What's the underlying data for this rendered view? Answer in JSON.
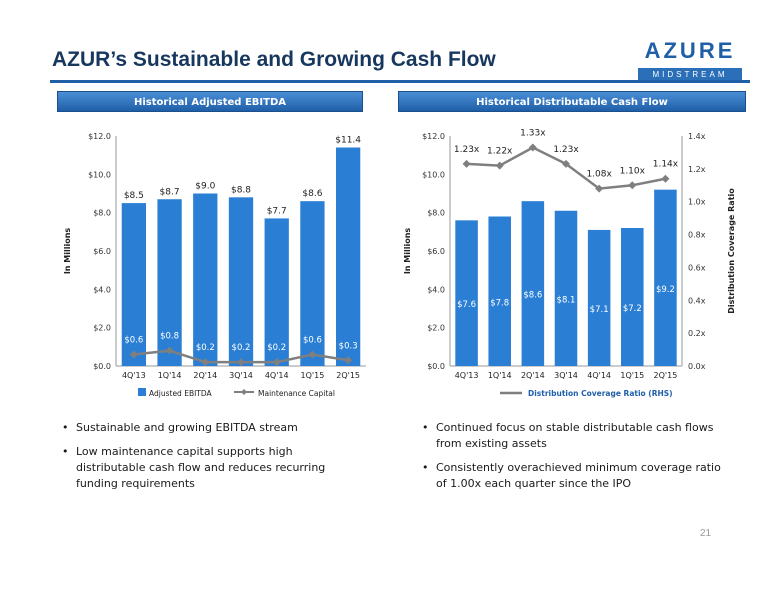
{
  "slide": {
    "title": "AZUR’s Sustainable and Growing Cash Flow",
    "logo_word": "AZURE",
    "logo_sub": "MIDSTREAM",
    "page_number": "21",
    "colors": {
      "bar": "#2a7fd4",
      "line": "#7f7f7f",
      "header": "#1f5fa8",
      "title": "#17375e"
    }
  },
  "left_panel": {
    "header": "Historical Adjusted EBITDA",
    "bullets": [
      "Sustainable and growing EBITDA stream",
      "Low maintenance capital supports high distributable cash flow and reduces recurring funding requirements"
    ]
  },
  "right_panel": {
    "header": "Historical Distributable Cash Flow",
    "bullets": [
      "Continued focus on stable distributable cash flows from existing assets",
      "Consistently overachieved minimum coverage ratio of 1.00x each quarter since the IPO"
    ]
  },
  "chart_data": [
    {
      "type": "bar",
      "categories": [
        "4Q'13",
        "1Q'14",
        "2Q'14",
        "3Q'14",
        "4Q'14",
        "1Q'15",
        "2Q'15"
      ],
      "series": [
        {
          "name": "Adjusted EBITDA",
          "kind": "bar",
          "values": [
            8.5,
            8.7,
            9.0,
            8.8,
            7.7,
            8.6,
            11.4
          ],
          "labels": [
            "$8.5",
            "$8.7",
            "$9.0",
            "$8.8",
            "$7.7",
            "$8.6",
            "$11.4"
          ]
        },
        {
          "name": "Maintenance Capital",
          "kind": "line",
          "values": [
            0.6,
            0.8,
            0.2,
            0.2,
            0.2,
            0.6,
            0.3
          ],
          "labels": [
            "$0.6",
            "$0.8",
            "$0.2",
            "$0.2",
            "$0.2",
            "$0.6",
            "$0.3"
          ]
        }
      ],
      "ylabel": "In Millions",
      "ylim": [
        0,
        12
      ],
      "yticks": [
        "$0.0",
        "$2.0",
        "$4.0",
        "$6.0",
        "$8.0",
        "$10.0",
        "$12.0"
      ],
      "legend": "bottom",
      "grid": false
    },
    {
      "type": "bar",
      "categories": [
        "4Q'13",
        "1Q'14",
        "2Q'14",
        "3Q'14",
        "4Q'14",
        "1Q'15",
        "2Q'15"
      ],
      "series": [
        {
          "name": "Distributable Cash Flow",
          "kind": "bar",
          "values": [
            7.6,
            7.8,
            8.6,
            8.1,
            7.1,
            7.2,
            9.2
          ],
          "labels": [
            "$7.6",
            "$7.8",
            "$8.6",
            "$8.1",
            "$7.1",
            "$7.2",
            "$9.2"
          ]
        },
        {
          "name": "Distribution Coverage Ratio (RHS)",
          "kind": "line",
          "axis": "right",
          "values": [
            1.23,
            1.22,
            1.33,
            1.23,
            1.08,
            1.1,
            1.14
          ],
          "labels": [
            "1.23x",
            "1.22x",
            "1.33x",
            "1.23x",
            "1.08x",
            "1.10x",
            "1.14x"
          ]
        }
      ],
      "ylabel": "In Millions",
      "y2label": "Distribution Coverage Ratio",
      "ylim": [
        0,
        12
      ],
      "y2lim": [
        0,
        1.4
      ],
      "yticks": [
        "$0.0",
        "$2.0",
        "$4.0",
        "$6.0",
        "$8.0",
        "$10.0",
        "$12.0"
      ],
      "y2ticks": [
        "0.0x",
        "0.2x",
        "0.4x",
        "0.6x",
        "0.8x",
        "1.0x",
        "1.2x",
        "1.4x"
      ],
      "legend": "bottom",
      "grid": false
    }
  ]
}
